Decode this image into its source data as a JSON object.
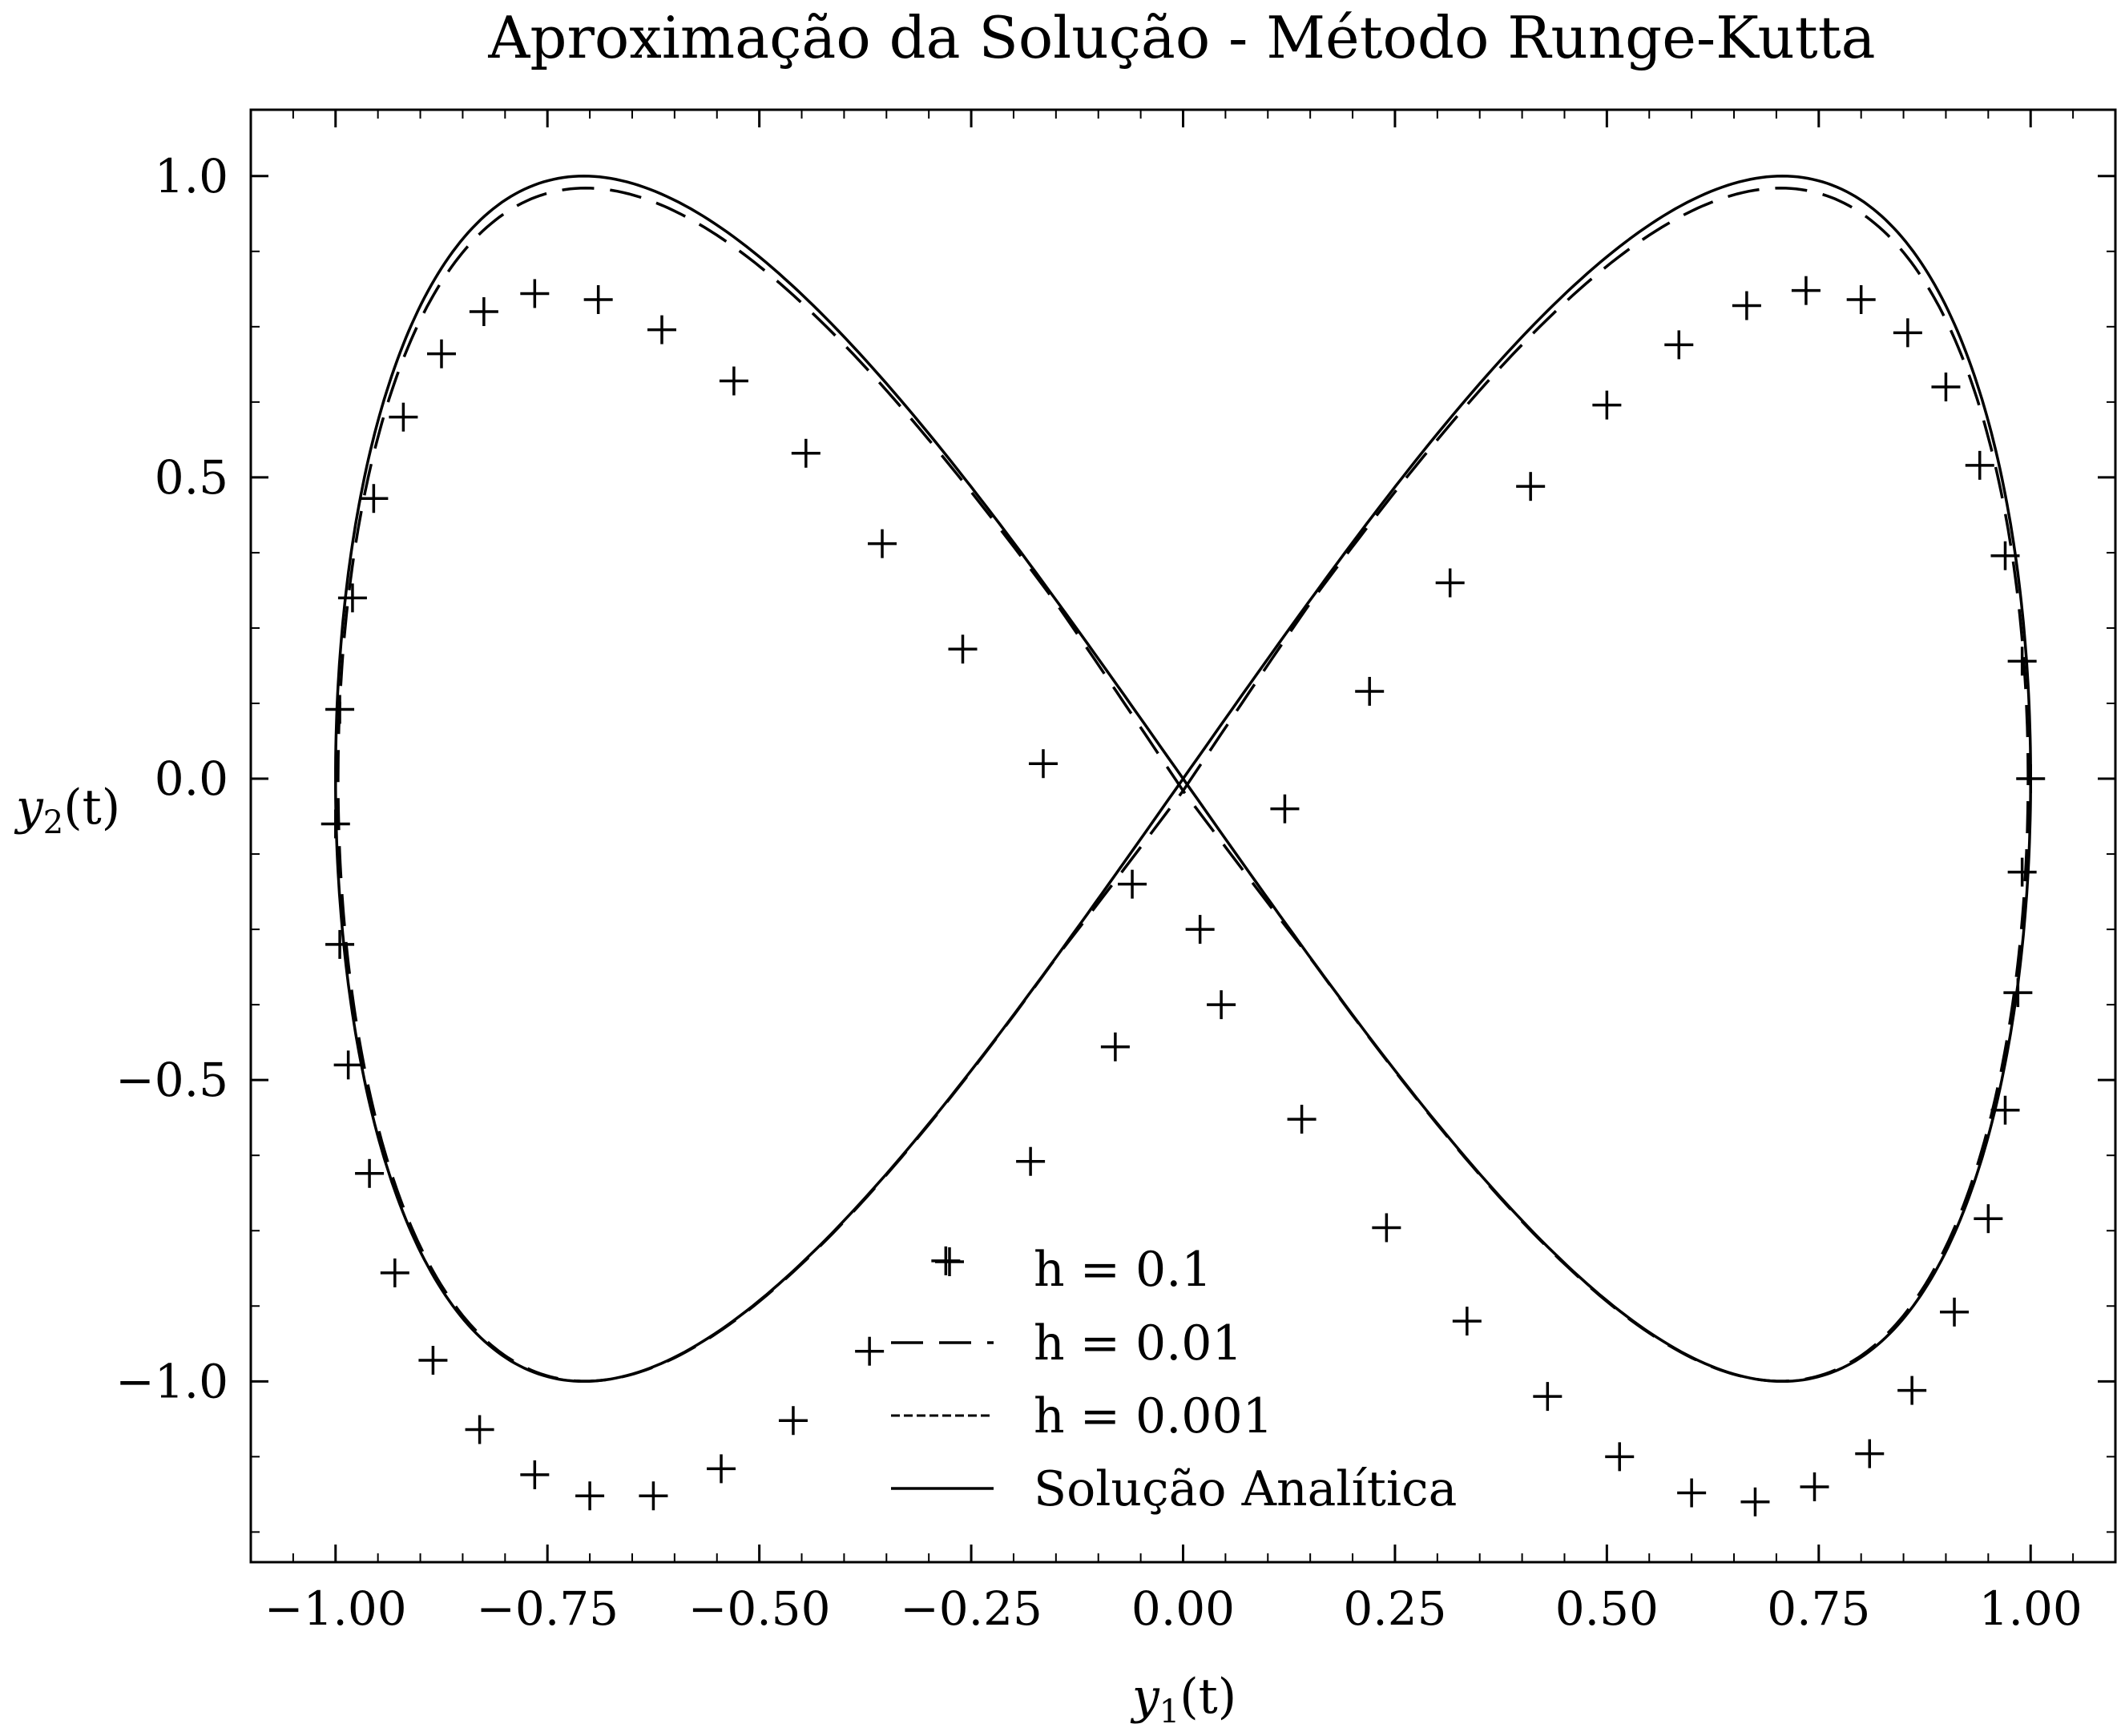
{
  "chart_data": {
    "type": "line",
    "title": "Aproximação da Solução - Método Runge-Kutta",
    "xlabel": {
      "base": "y",
      "sub": "1",
      "suffix": "(t)"
    },
    "ylabel": {
      "base": "y",
      "sub": "2",
      "suffix": "(t)"
    },
    "xlim": [
      -1.1,
      1.1
    ],
    "ylim": [
      -1.3,
      1.11
    ],
    "xticks": [
      -1.0,
      -0.75,
      -0.5,
      -0.25,
      0.0,
      0.25,
      0.5,
      0.75,
      1.0
    ],
    "xtick_labels": [
      "−1.00",
      "−0.75",
      "−0.50",
      "−0.25",
      "0.00",
      "0.25",
      "0.50",
      "0.75",
      "1.00"
    ],
    "yticks": [
      -1.0,
      -0.5,
      0.0,
      0.5,
      1.0
    ],
    "ytick_labels": [
      "−1.0",
      "−0.5",
      "0.0",
      "0.5",
      "1.0"
    ],
    "grid": false,
    "legend_position": "lower center",
    "legend": [
      {
        "label": "h = 0.1",
        "style": "plus"
      },
      {
        "label": "h = 0.01",
        "style": "long-dash"
      },
      {
        "label": "h = 0.001",
        "style": "short-dash"
      },
      {
        "label": "Solução Analítica",
        "style": "solid"
      }
    ],
    "series": [
      {
        "name": "h = 0.1",
        "style": "plus",
        "points": [
          [
            1.0,
            0.0
          ],
          [
            0.99,
            -0.155
          ],
          [
            0.985,
            -0.355
          ],
          [
            0.97,
            -0.55
          ],
          [
            0.95,
            -0.73
          ],
          [
            0.91,
            -0.885
          ],
          [
            0.86,
            -1.015
          ],
          [
            0.81,
            -1.12
          ],
          [
            0.745,
            -1.175
          ],
          [
            0.675,
            -1.2
          ],
          [
            0.6,
            -1.185
          ],
          [
            0.515,
            -1.125
          ],
          [
            0.43,
            -1.025
          ],
          [
            0.335,
            -0.9
          ],
          [
            0.24,
            -0.745
          ],
          [
            0.14,
            -0.565
          ],
          [
            0.045,
            -0.375
          ],
          [
            0.02,
            -0.25
          ],
          [
            0.12,
            -0.05
          ],
          [
            0.22,
            0.145
          ],
          [
            0.315,
            0.325
          ],
          [
            0.41,
            0.485
          ],
          [
            0.5,
            0.62
          ],
          [
            0.585,
            0.72
          ],
          [
            0.665,
            0.785
          ],
          [
            0.735,
            0.81
          ],
          [
            0.8,
            0.795
          ],
          [
            0.855,
            0.74
          ],
          [
            0.9,
            0.65
          ],
          [
            0.94,
            0.52
          ],
          [
            0.97,
            0.37
          ],
          [
            0.99,
            0.195
          ],
          [
            -1.0,
            -0.075
          ],
          [
            -0.995,
            -0.275
          ],
          [
            -0.985,
            -0.475
          ],
          [
            -0.96,
            -0.655
          ],
          [
            -0.93,
            -0.82
          ],
          [
            -0.885,
            -0.965
          ],
          [
            -0.83,
            -1.08
          ],
          [
            -0.765,
            -1.155
          ],
          [
            -0.7,
            -1.19
          ],
          [
            -0.625,
            -1.19
          ],
          [
            -0.545,
            -1.145
          ],
          [
            -0.46,
            -1.065
          ],
          [
            -0.37,
            -0.95
          ],
          [
            -0.28,
            -0.8
          ],
          [
            -0.18,
            -0.635
          ],
          [
            -0.08,
            -0.445
          ],
          [
            -0.06,
            -0.175
          ],
          [
            -0.165,
            0.025
          ],
          [
            -0.26,
            0.215
          ],
          [
            -0.355,
            0.39
          ],
          [
            -0.445,
            0.54
          ],
          [
            -0.53,
            0.66
          ],
          [
            -0.615,
            0.745
          ],
          [
            -0.69,
            0.795
          ],
          [
            -0.765,
            0.805
          ],
          [
            -0.825,
            0.775
          ],
          [
            -0.875,
            0.705
          ],
          [
            -0.92,
            0.6
          ],
          [
            -0.955,
            0.465
          ],
          [
            -0.98,
            0.3
          ],
          [
            -0.995,
            0.115
          ]
        ]
      },
      {
        "name": "h = 0.01",
        "style": "long-dash",
        "curve": {
          "x": "sin(t)",
          "y": "0.98*sin(2t) - 0.04*sin(t)^2*sign"
        },
        "amplitude_y": 0.98
      },
      {
        "name": "h = 0.001",
        "style": "short-dash",
        "curve": {
          "x": "sin(t)",
          "y": "sin(2t)"
        },
        "amplitude_y": 1.0
      },
      {
        "name": "Solução Analítica",
        "style": "solid",
        "curve": {
          "x": "sin(t)",
          "y": "sin(2t)"
        },
        "amplitude_y": 1.0
      }
    ]
  }
}
